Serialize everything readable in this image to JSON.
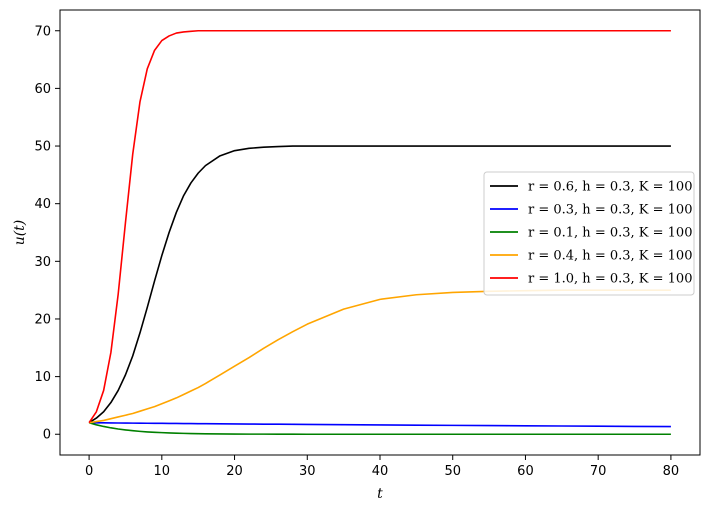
{
  "chart_data": {
    "type": "line",
    "title": "",
    "xlabel": "t",
    "ylabel": "u(t)",
    "xlim": [
      -4,
      84
    ],
    "ylim": [
      -3.6,
      73.6
    ],
    "xticks": [
      0,
      10,
      20,
      30,
      40,
      50,
      60,
      70,
      80
    ],
    "yticks": [
      0,
      10,
      20,
      30,
      40,
      50,
      60,
      70
    ],
    "grid": false,
    "legend_position": "center-right",
    "x": [
      0,
      1,
      2,
      3,
      4,
      5,
      6,
      7,
      8,
      9,
      10,
      11,
      12,
      13,
      14,
      15,
      16,
      18,
      20,
      22,
      24,
      26,
      28,
      30,
      35,
      40,
      45,
      50,
      55,
      60,
      65,
      70,
      75,
      80
    ],
    "series": [
      {
        "name": "r = 0.6, h = 0.3, K = 100",
        "color": "#000000",
        "values": [
          2.0,
          2.8,
          3.9,
          5.5,
          7.6,
          10.3,
          13.6,
          17.6,
          22.0,
          26.6,
          31.0,
          35.0,
          38.5,
          41.4,
          43.6,
          45.3,
          46.6,
          48.3,
          49.2,
          49.6,
          49.8,
          49.9,
          50.0,
          50.0,
          50.0,
          50.0,
          50.0,
          50.0,
          50.0,
          50.0,
          50.0,
          50.0,
          50.0,
          50.0
        ]
      },
      {
        "name": "r = 0.3, h = 0.3, K = 100",
        "color": "#0000ff",
        "values": [
          2.0,
          1.99,
          1.98,
          1.96,
          1.95,
          1.94,
          1.93,
          1.92,
          1.91,
          1.9,
          1.89,
          1.88,
          1.87,
          1.86,
          1.85,
          1.84,
          1.83,
          1.81,
          1.79,
          1.77,
          1.75,
          1.74,
          1.72,
          1.7,
          1.66,
          1.62,
          1.58,
          1.54,
          1.5,
          1.46,
          1.43,
          1.4,
          1.36,
          1.33
        ]
      },
      {
        "name": "r = 0.1, h = 0.3, K = 100",
        "color": "#008000",
        "values": [
          2.0,
          1.64,
          1.35,
          1.11,
          0.91,
          0.75,
          0.61,
          0.5,
          0.41,
          0.34,
          0.28,
          0.23,
          0.19,
          0.15,
          0.12,
          0.1,
          0.08,
          0.05,
          0.04,
          0.02,
          0.02,
          0.01,
          0.01,
          0.0,
          0.0,
          0.0,
          0.0,
          0.0,
          0.0,
          0.0,
          0.0,
          0.0,
          0.0,
          0.0
        ]
      },
      {
        "name": "r = 0.4, h = 0.3, K = 100",
        "color": "#ffa500",
        "values": [
          2.0,
          2.2,
          2.4,
          2.7,
          3.0,
          3.3,
          3.6,
          4.0,
          4.4,
          4.8,
          5.3,
          5.8,
          6.3,
          6.9,
          7.5,
          8.1,
          8.8,
          10.3,
          11.8,
          13.3,
          14.9,
          16.4,
          17.8,
          19.1,
          21.7,
          23.4,
          24.2,
          24.6,
          24.8,
          24.9,
          25.0,
          25.0,
          25.0,
          25.0
        ]
      },
      {
        "name": "r = 1.0, h = 0.3, K = 100",
        "color": "#ff0000",
        "values": [
          2.0,
          3.9,
          7.6,
          14.2,
          24.3,
          36.7,
          48.6,
          57.7,
          63.4,
          66.6,
          68.3,
          69.1,
          69.6,
          69.8,
          69.9,
          70.0,
          70.0,
          70.0,
          70.0,
          70.0,
          70.0,
          70.0,
          70.0,
          70.0,
          70.0,
          70.0,
          70.0,
          70.0,
          70.0,
          70.0,
          70.0,
          70.0,
          70.0,
          70.0
        ]
      }
    ]
  }
}
